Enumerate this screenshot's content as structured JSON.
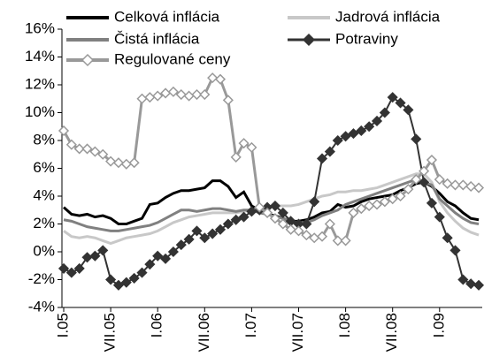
{
  "chart_data": {
    "type": "line",
    "categories": [
      "I.05",
      null,
      null,
      null,
      null,
      null,
      "VII.05",
      null,
      null,
      null,
      null,
      null,
      "I.06",
      null,
      null,
      null,
      null,
      null,
      "VII.06",
      null,
      null,
      null,
      null,
      null,
      "I.07",
      null,
      null,
      null,
      null,
      null,
      "VII.07",
      null,
      null,
      null,
      null,
      null,
      "I.08",
      null,
      null,
      null,
      null,
      null,
      "VII.08",
      null,
      null,
      null,
      null,
      null,
      "I.09",
      null,
      null,
      null,
      null,
      null
    ],
    "series": [
      {
        "name": "Celková inflácia",
        "color": "#000000",
        "width": 3,
        "values": [
          3.2,
          2.7,
          2.6,
          2.7,
          2.5,
          2.6,
          2.4,
          2.0,
          2.0,
          2.2,
          2.4,
          3.4,
          3.5,
          3.9,
          4.2,
          4.4,
          4.4,
          4.5,
          4.6,
          5.1,
          5.1,
          4.7,
          3.9,
          4.3,
          3.3,
          3.0,
          2.7,
          2.6,
          2.4,
          2.2,
          2.2,
          2.3,
          2.5,
          2.8,
          2.9,
          3.4,
          3.2,
          3.3,
          3.6,
          3.8,
          3.9,
          4.0,
          4.1,
          4.4,
          4.6,
          4.9,
          5.0,
          4.7,
          4.2,
          3.6,
          3.3,
          2.8,
          2.4,
          2.3
        ]
      },
      {
        "name": "Jadrová inflácia",
        "color": "#c8c8c8",
        "width": 3,
        "values": [
          1.5,
          1.1,
          1.0,
          1.1,
          1.0,
          0.8,
          0.6,
          0.8,
          1.0,
          1.1,
          1.2,
          1.3,
          1.5,
          1.8,
          2.1,
          2.3,
          2.5,
          2.6,
          2.7,
          2.8,
          2.8,
          2.8,
          2.8,
          2.9,
          3.0,
          3.1,
          3.2,
          3.3,
          3.3,
          3.3,
          3.4,
          3.6,
          3.8,
          4.0,
          4.1,
          4.3,
          4.3,
          4.4,
          4.4,
          4.5,
          4.6,
          4.8,
          5.0,
          5.2,
          5.4,
          5.6,
          5.6,
          5.0,
          3.6,
          2.8,
          2.2,
          1.7,
          1.4,
          1.2
        ]
      },
      {
        "name": "Čistá inflácia",
        "color": "#808080",
        "width": 3,
        "values": [
          2.3,
          2.2,
          2.0,
          1.8,
          1.7,
          1.6,
          1.5,
          1.5,
          1.6,
          1.7,
          1.8,
          1.9,
          2.1,
          2.4,
          2.7,
          3.0,
          3.0,
          2.9,
          3.0,
          3.1,
          3.1,
          3.0,
          2.9,
          3.0,
          3.0,
          2.8,
          2.7,
          2.5,
          2.4,
          2.2,
          2.1,
          2.1,
          2.3,
          2.6,
          2.8,
          3.0,
          3.4,
          3.6,
          3.8,
          4.0,
          4.2,
          4.4,
          4.6,
          4.8,
          5.0,
          5.2,
          5.0,
          4.8,
          3.8,
          3.3,
          2.8,
          2.4,
          2.1,
          2.0
        ]
      },
      {
        "name": "Potraviny",
        "color": "#333333",
        "width": 2,
        "marker": "diamond",
        "marker_fill": "#333333",
        "values": [
          -1.2,
          -1.5,
          -1.2,
          -0.4,
          -0.3,
          0.1,
          -2.0,
          -2.4,
          -2.2,
          -1.9,
          -1.5,
          -0.9,
          -0.3,
          -0.5,
          0.0,
          0.5,
          0.9,
          1.5,
          1.0,
          1.3,
          1.6,
          2.0,
          2.3,
          2.5,
          2.9,
          3.0,
          3.2,
          3.3,
          2.8,
          2.2,
          2.0,
          2.0,
          3.6,
          6.7,
          7.2,
          8.0,
          8.3,
          8.5,
          8.7,
          9.0,
          9.4,
          10.0,
          11.1,
          10.7,
          10.2,
          8.1,
          5.0,
          3.5,
          2.5,
          1.0,
          0.1,
          -2.0,
          -2.3,
          -2.4
        ]
      },
      {
        "name": "Regulované ceny",
        "color": "#999999",
        "width": 3,
        "marker": "diamond",
        "marker_fill": "#ffffff",
        "values": [
          8.7,
          7.7,
          7.4,
          7.4,
          7.2,
          7.0,
          6.5,
          6.4,
          6.3,
          6.4,
          11.0,
          11.1,
          11.2,
          11.4,
          11.5,
          11.3,
          11.2,
          11.3,
          11.3,
          12.5,
          12.4,
          10.9,
          6.8,
          7.8,
          7.5,
          3.2,
          2.8,
          2.4,
          2.0,
          1.6,
          1.5,
          1.2,
          1.0,
          1.1,
          2.0,
          0.8,
          0.8,
          2.8,
          3.1,
          3.3,
          3.4,
          3.6,
          3.8,
          4.0,
          4.5,
          5.2,
          5.8,
          6.6,
          5.2,
          4.9,
          4.8,
          4.8,
          4.7,
          4.6
        ]
      }
    ],
    "ylim": [
      -4,
      16
    ],
    "yticks": [
      {
        "value": -4,
        "label": "-4%"
      },
      {
        "value": -2,
        "label": "-2%"
      },
      {
        "value": 0,
        "label": "0%"
      },
      {
        "value": 2,
        "label": "2%"
      },
      {
        "value": 4,
        "label": "4%"
      },
      {
        "value": 6,
        "label": "6%"
      },
      {
        "value": 8,
        "label": "8%"
      },
      {
        "value": 10,
        "label": "10%"
      },
      {
        "value": 12,
        "label": "12%"
      },
      {
        "value": 14,
        "label": "14%"
      },
      {
        "value": 16,
        "label": "16%"
      }
    ],
    "grid": false,
    "legend": "top"
  }
}
